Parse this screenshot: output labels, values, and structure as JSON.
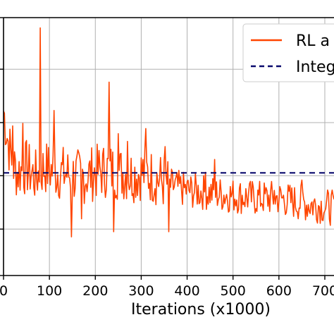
{
  "chart_data": {
    "type": "line",
    "title": "",
    "xlabel": "Iterations (x1000)",
    "ylabel": "",
    "xlim": [
      0,
      720
    ],
    "ylim": [
      0,
      1
    ],
    "x_ticks": [
      0,
      100,
      200,
      300,
      400,
      500,
      600,
      700
    ],
    "x_tick_labels": [
      "0",
      "100",
      "200",
      "300",
      "400",
      "500",
      "600",
      "700"
    ],
    "y_ticks": [
      0.0,
      0.18,
      0.387,
      0.593,
      0.8,
      1.0
    ],
    "grid": true,
    "legend_position": "top-right",
    "series": [
      {
        "name": "RL a",
        "color": "#ff4500",
        "style": "solid",
        "noise_seed": 7,
        "points": [
          [
            0,
            0.64
          ],
          [
            10,
            0.52
          ],
          [
            20,
            0.43
          ],
          [
            30,
            0.4
          ],
          [
            40,
            0.41
          ],
          [
            50,
            0.42
          ],
          [
            60,
            0.4
          ],
          [
            70,
            0.38
          ],
          [
            78,
            0.4
          ],
          [
            90,
            0.42
          ],
          [
            100,
            0.41
          ],
          [
            120,
            0.4
          ],
          [
            150,
            0.39
          ],
          [
            170,
            0.38
          ],
          [
            200,
            0.4
          ],
          [
            230,
            0.41
          ],
          [
            250,
            0.4
          ],
          [
            280,
            0.39
          ],
          [
            300,
            0.4
          ],
          [
            330,
            0.38
          ],
          [
            360,
            0.35
          ],
          [
            400,
            0.33
          ],
          [
            450,
            0.32
          ],
          [
            500,
            0.31
          ],
          [
            550,
            0.3
          ],
          [
            600,
            0.3
          ],
          [
            650,
            0.28
          ],
          [
            700,
            0.27
          ],
          [
            720,
            0.26
          ]
        ],
        "spikes": [
          [
            20,
            0.58
          ],
          [
            42,
            0.59
          ],
          [
            80,
            0.96
          ],
          [
            82,
            0.36
          ],
          [
            110,
            0.64
          ],
          [
            145,
            0.62
          ],
          [
            148,
            0.15
          ],
          [
            165,
            0.75
          ],
          [
            170,
            0.22
          ],
          [
            225,
            0.68
          ],
          [
            230,
            0.75
          ],
          [
            240,
            0.17
          ],
          [
            250,
            0.55
          ],
          [
            255,
            0.68
          ],
          [
            270,
            0.52
          ],
          [
            310,
            0.57
          ],
          [
            352,
            0.5
          ],
          [
            360,
            0.17
          ],
          [
            440,
            0.4
          ],
          [
            460,
            0.45
          ],
          [
            475,
            0.15
          ],
          [
            505,
            0.12
          ],
          [
            535,
            0.35
          ],
          [
            590,
            0.33
          ],
          [
            615,
            0.13
          ],
          [
            650,
            0.37
          ],
          [
            700,
            0.25
          ]
        ]
      },
      {
        "name": "Integ",
        "color": "#0a0a6e",
        "style": "dashed",
        "points": [
          [
            0,
            0.398
          ],
          [
            720,
            0.398
          ]
        ]
      }
    ]
  }
}
